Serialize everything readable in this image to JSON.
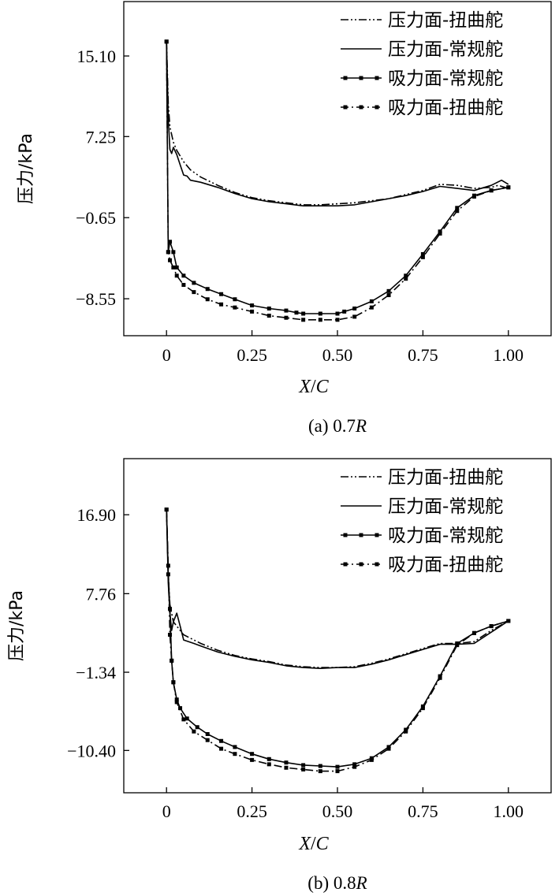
{
  "chart_data": [
    {
      "type": "line",
      "caption": "(a) 0.7R",
      "caption_prefix": "(a) 0.7",
      "caption_italic": "R",
      "xlabel_parts": [
        "X",
        "/",
        "C"
      ],
      "ylabel": "压力/kPa",
      "xlim": [
        -0.125,
        1.125
      ],
      "ylim": [
        -12.15,
        20.4
      ],
      "xticks": [
        0,
        0.25,
        0.5,
        0.75,
        1.0
      ],
      "xtick_labels": [
        "0",
        "0.25",
        "0.50",
        "0.75",
        "1.00"
      ],
      "yticks": [
        15.1,
        7.25,
        -0.65,
        -8.55
      ],
      "ytick_labels": [
        "15.10",
        "7.25",
        "−0.65",
        "−8.55"
      ],
      "legend_position": "top-right",
      "series": [
        {
          "name": "压力面-扭曲舵",
          "style": "dash-dot-dot",
          "marker": "none",
          "x": [
            0,
            0.005,
            0.01,
            0.02,
            0.03,
            0.05,
            0.07,
            0.1,
            0.15,
            0.2,
            0.25,
            0.3,
            0.35,
            0.4,
            0.45,
            0.5,
            0.55,
            0.6,
            0.65,
            0.7,
            0.75,
            0.8,
            0.85,
            0.9,
            0.95,
            0.97,
            1.0
          ],
          "y": [
            16.5,
            10.5,
            8.2,
            6.7,
            5.9,
            4.8,
            4.0,
            3.3,
            2.5,
            1.8,
            1.3,
            1.0,
            0.8,
            0.6,
            0.6,
            0.7,
            0.8,
            1.0,
            1.2,
            1.6,
            2.0,
            2.6,
            2.5,
            2.2,
            2.3,
            2.5,
            2.2
          ]
        },
        {
          "name": "压力面-常规舵",
          "style": "solid",
          "marker": "none",
          "x": [
            0,
            0.005,
            0.01,
            0.015,
            0.02,
            0.03,
            0.04,
            0.05,
            0.06,
            0.07,
            0.1,
            0.15,
            0.2,
            0.25,
            0.3,
            0.35,
            0.4,
            0.45,
            0.5,
            0.55,
            0.6,
            0.65,
            0.7,
            0.75,
            0.8,
            0.85,
            0.9,
            0.95,
            0.98,
            1.0
          ],
          "y": [
            16.5,
            9.0,
            6.0,
            5.6,
            6.2,
            5.5,
            4.5,
            3.5,
            3.4,
            3.0,
            2.8,
            2.3,
            1.7,
            1.2,
            0.9,
            0.7,
            0.5,
            0.5,
            0.5,
            0.6,
            0.9,
            1.2,
            1.5,
            1.9,
            2.4,
            2.2,
            2.0,
            2.5,
            3.0,
            2.6
          ]
        },
        {
          "name": "吸力面-常规舵",
          "style": "solid",
          "marker": "square",
          "x": [
            0,
            0.005,
            0.01,
            0.02,
            0.03,
            0.05,
            0.08,
            0.12,
            0.16,
            0.2,
            0.25,
            0.3,
            0.35,
            0.38,
            0.4,
            0.45,
            0.5,
            0.52,
            0.55,
            0.6,
            0.65,
            0.7,
            0.75,
            0.8,
            0.85,
            0.9,
            0.95,
            1.0
          ],
          "y": [
            16.5,
            -4.0,
            -3.0,
            -4.0,
            -5.5,
            -6.3,
            -7.0,
            -7.6,
            -8.1,
            -8.6,
            -9.2,
            -9.5,
            -9.7,
            -9.9,
            -10.0,
            -10.0,
            -10.0,
            -9.8,
            -9.5,
            -8.8,
            -7.8,
            -6.3,
            -4.2,
            -2.0,
            0.3,
            1.5,
            2.0,
            2.3
          ]
        },
        {
          "name": "吸力面-扭曲舵",
          "style": "dash-dot",
          "marker": "square",
          "x": [
            0,
            0.005,
            0.01,
            0.02,
            0.03,
            0.05,
            0.08,
            0.12,
            0.16,
            0.2,
            0.25,
            0.3,
            0.35,
            0.4,
            0.45,
            0.5,
            0.55,
            0.6,
            0.65,
            0.7,
            0.75,
            0.8,
            0.85,
            0.9,
            0.95,
            1.0
          ],
          "y": [
            16.5,
            -4.0,
            -4.8,
            -5.5,
            -6.3,
            -7.2,
            -7.9,
            -8.6,
            -9.1,
            -9.4,
            -9.8,
            -10.2,
            -10.4,
            -10.6,
            -10.6,
            -10.6,
            -10.3,
            -9.4,
            -8.2,
            -6.6,
            -4.5,
            -2.2,
            0.0,
            1.4,
            2.0,
            2.3
          ]
        }
      ]
    },
    {
      "type": "line",
      "caption": "(b) 0.8R",
      "caption_prefix": "(b) 0.8",
      "caption_italic": "R",
      "xlabel_parts": [
        "X",
        "/",
        "C"
      ],
      "ylabel": "压力/kPa",
      "xlim": [
        -0.125,
        1.125
      ],
      "ylim": [
        -15.3,
        23.4
      ],
      "xticks": [
        0,
        0.25,
        0.5,
        0.75,
        1.0
      ],
      "xtick_labels": [
        "0",
        "0.25",
        "0.50",
        "0.75",
        "1.00"
      ],
      "yticks": [
        16.9,
        7.76,
        -1.34,
        -10.4
      ],
      "ytick_labels": [
        "16.90",
        "7.76",
        "−1.34",
        "−10.40"
      ],
      "legend_position": "top-right",
      "series": [
        {
          "name": "压力面-扭曲舵",
          "style": "dash-dot-dot",
          "marker": "none",
          "x": [
            0,
            0.005,
            0.01,
            0.015,
            0.02,
            0.03,
            0.05,
            0.08,
            0.1,
            0.15,
            0.2,
            0.25,
            0.3,
            0.35,
            0.4,
            0.45,
            0.5,
            0.55,
            0.6,
            0.65,
            0.7,
            0.75,
            0.8,
            0.85,
            0.9,
            0.95,
            1.0
          ],
          "y": [
            17.5,
            10.0,
            6.5,
            5.5,
            4.5,
            4.0,
            3.0,
            2.4,
            2.0,
            1.2,
            0.6,
            0.2,
            -0.1,
            -0.5,
            -0.7,
            -0.8,
            -0.8,
            -0.7,
            -0.3,
            0.2,
            0.8,
            1.4,
            2.0,
            2.0,
            2.2,
            3.5,
            4.6
          ]
        },
        {
          "name": "压力面-常规舵",
          "style": "solid",
          "marker": "none",
          "x": [
            0,
            0.005,
            0.01,
            0.015,
            0.02,
            0.03,
            0.04,
            0.05,
            0.08,
            0.1,
            0.15,
            0.2,
            0.25,
            0.3,
            0.35,
            0.4,
            0.45,
            0.5,
            0.55,
            0.6,
            0.65,
            0.7,
            0.75,
            0.8,
            0.85,
            0.9,
            0.95,
            1.0
          ],
          "y": [
            17.5,
            9.0,
            5.5,
            3.5,
            4.5,
            5.5,
            4.0,
            2.4,
            2.0,
            1.7,
            1.0,
            0.5,
            0.1,
            -0.2,
            -0.6,
            -0.8,
            -0.9,
            -0.8,
            -0.8,
            -0.4,
            0.1,
            0.7,
            1.3,
            1.9,
            1.9,
            2.0,
            3.3,
            4.6
          ]
        },
        {
          "name": "吸力面-常规舵",
          "style": "solid",
          "marker": "square",
          "x": [
            0,
            0.005,
            0.01,
            0.015,
            0.02,
            0.03,
            0.04,
            0.06,
            0.09,
            0.12,
            0.16,
            0.2,
            0.25,
            0.3,
            0.35,
            0.4,
            0.45,
            0.5,
            0.55,
            0.6,
            0.65,
            0.7,
            0.75,
            0.8,
            0.85,
            0.9,
            0.95,
            1.0
          ],
          "y": [
            17.5,
            10.0,
            6.0,
            0.0,
            -2.5,
            -4.5,
            -5.5,
            -6.7,
            -7.7,
            -8.5,
            -9.3,
            -10.0,
            -10.8,
            -11.4,
            -11.8,
            -12.1,
            -12.2,
            -12.3,
            -12.0,
            -11.3,
            -10.0,
            -8.0,
            -5.3,
            -1.8,
            2.0,
            3.2,
            4.0,
            4.6
          ]
        },
        {
          "name": "吸力面-扭曲舵",
          "style": "dash-dot",
          "marker": "square",
          "x": [
            0,
            0.005,
            0.01,
            0.015,
            0.02,
            0.03,
            0.05,
            0.08,
            0.12,
            0.16,
            0.2,
            0.25,
            0.3,
            0.35,
            0.4,
            0.45,
            0.5,
            0.55,
            0.6,
            0.65,
            0.7,
            0.75,
            0.8,
            0.85,
            0.9,
            0.95,
            1.0
          ],
          "y": [
            17.5,
            11.0,
            3.0,
            0.0,
            -2.5,
            -4.8,
            -6.8,
            -8.2,
            -9.2,
            -10.2,
            -10.8,
            -11.5,
            -12.0,
            -12.4,
            -12.6,
            -12.8,
            -12.8,
            -12.3,
            -11.5,
            -10.2,
            -8.2,
            -5.5,
            -2.0,
            1.8,
            3.2,
            4.0,
            4.6
          ]
        }
      ]
    }
  ]
}
